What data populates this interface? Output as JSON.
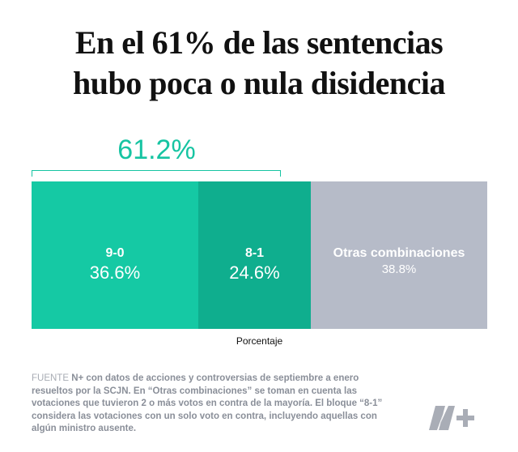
{
  "title_lines": [
    "En el 61% de las sentencias",
    "hubo poca o nula disidencia"
  ],
  "bracket_label": "61.2%",
  "colors": {
    "segment_1": "#15c9a4",
    "segment_2": "#0fae8e",
    "segment_3": "#b6bbc8",
    "accent": "#16c4a2"
  },
  "chart_data": {
    "type": "bar",
    "orientation": "horizontal-stacked",
    "categories": [
      "9-0",
      "8-1",
      "Otras combinaciones"
    ],
    "values": [
      36.6,
      24.6,
      38.8
    ],
    "value_labels": [
      "36.6%",
      "24.6%",
      "38.8%"
    ],
    "bracket": {
      "covers": [
        "9-0",
        "8-1"
      ],
      "label": "61.2%"
    },
    "xlabel": "Porcentaje",
    "xlim": [
      0,
      100
    ],
    "title": "En el 61% de las sentencias hubo poca o nula disidencia"
  },
  "source": {
    "tag": "FUENTE",
    "text": "N+ con datos de acciones y controversias de septiembre a enero resueltos por la SCJN. En “Otras combinaciones” se toman en cuenta las votaciones que tuvieron 2 o más votos en contra de la mayoría. El bloque “8-1” considera las votaciones con un solo voto en contra, incluyendo aquellas con algún ministro ausente."
  },
  "logo": {
    "text": "N+",
    "icon": "n-plus-logo-icon"
  }
}
